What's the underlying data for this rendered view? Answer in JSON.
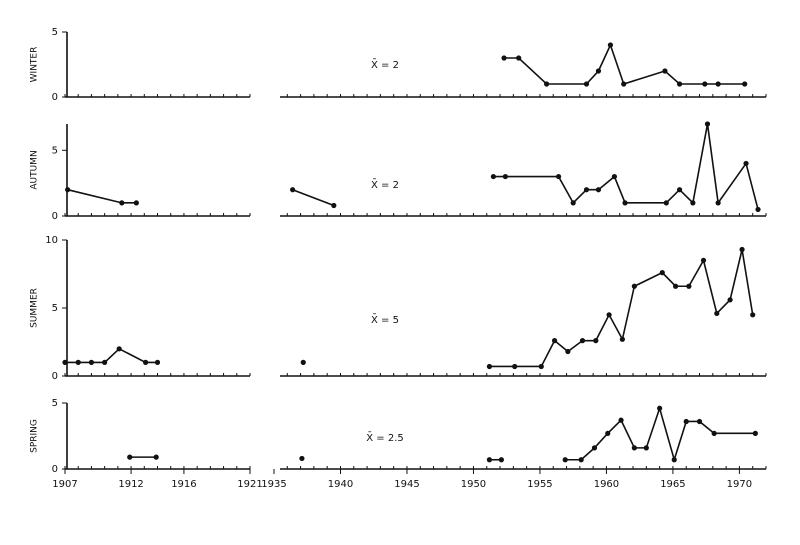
{
  "chart_data": [
    {
      "type": "line",
      "ylabel": "WINTER",
      "annotation": "X̄ = 2",
      "x": [
        1952.3,
        1953.4,
        1955.5,
        1958.5,
        1959.4,
        1960.3,
        1961.3,
        1964.4,
        1965.5,
        1967.4,
        1968.4,
        1970.4
      ],
      "values": [
        3,
        3,
        1,
        1,
        2,
        4,
        1,
        2,
        1,
        1,
        1,
        1
      ],
      "ylim": [
        0,
        5
      ],
      "yticks": [
        0,
        5
      ],
      "color": "#111111"
    },
    {
      "type": "line",
      "ylabel": "AUTUMN",
      "annotation": "X̄ = 2",
      "x": [
        1907.2,
        1911.3,
        1912.4,
        null,
        1936.4,
        1939.5,
        null,
        1951.5,
        1952.4,
        1956.4,
        1957.5,
        1958.5,
        1959.4,
        1960.6,
        1961.4,
        1964.5,
        1965.5,
        1966.5,
        1967.6,
        1968.4,
        1970.5,
        1971.4
      ],
      "values": [
        2,
        1,
        1,
        null,
        2,
        0.8,
        null,
        3,
        3,
        3,
        1,
        2,
        2,
        3,
        1,
        1,
        2,
        1,
        7,
        1,
        4,
        0.5
      ],
      "ylim": [
        0,
        7
      ],
      "yticks": [
        0,
        5
      ],
      "color": "#111111"
    },
    {
      "type": "line",
      "ylabel": "SUMMER",
      "annotation": "X̄ = 5",
      "x": [
        1907,
        1908,
        1909,
        1910,
        1911.1,
        1913.1,
        1914,
        null,
        1937.2,
        null,
        1951.2,
        1953.1,
        1955.1,
        1956.1,
        1957.1,
        1958.2,
        1959.2,
        1960.2,
        1961.2,
        1962.1,
        1964.2,
        1965.2,
        1966.2,
        1967.3,
        1968.3,
        1969.3,
        1970.2,
        1971
      ],
      "values": [
        1,
        1,
        1,
        1,
        2,
        1,
        1,
        null,
        1,
        null,
        0.7,
        0.7,
        0.7,
        2.6,
        1.8,
        2.6,
        2.6,
        4.5,
        2.7,
        6.6,
        7.6,
        6.6,
        6.6,
        8.5,
        4.6,
        5.6,
        9.3,
        4.5
      ],
      "ylim": [
        0,
        10
      ],
      "yticks": [
        0,
        5,
        10
      ],
      "color": "#111111"
    },
    {
      "type": "line",
      "ylabel": "SPRING",
      "annotation": "X̄ = 2.5",
      "x": [
        1911.9,
        1913.9,
        null,
        1937.1,
        null,
        1951.2,
        1952.1,
        null,
        1956.9,
        1958.1,
        1959.1,
        1960.1,
        1961.1,
        1962.1,
        1963,
        1964,
        1965.1,
        1966,
        1967,
        1968.1,
        1971.2
      ],
      "values": [
        0.9,
        0.9,
        null,
        0.8,
        null,
        0.7,
        0.7,
        null,
        0.7,
        0.7,
        1.6,
        2.7,
        3.7,
        1.6,
        1.6,
        4.6,
        0.7,
        3.6,
        3.6,
        2.7,
        2.7
      ],
      "ylim": [
        0,
        5
      ],
      "yticks": [
        0,
        5
      ],
      "color": "#111111",
      "xlims": [
        [
          1907,
          1921
        ],
        [
          1935,
          1972
        ]
      ],
      "xticks": [
        1907,
        1912,
        1916,
        1921,
        1935,
        1940,
        1945,
        1950,
        1955,
        1960,
        1965,
        1970
      ]
    }
  ]
}
